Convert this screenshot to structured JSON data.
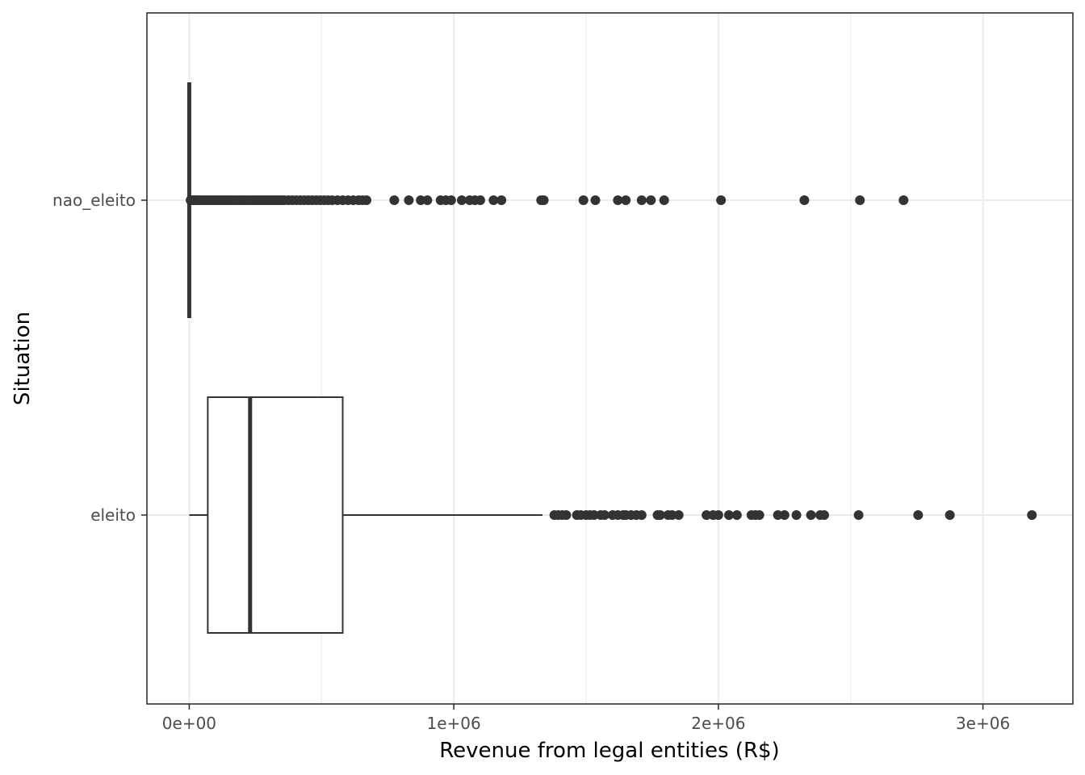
{
  "chart_data": {
    "type": "boxplot",
    "orientation": "horizontal",
    "title": "",
    "xlabel": "Revenue from legal entities (R$)",
    "ylabel": "Situation",
    "xlim": [
      -160000,
      3340000
    ],
    "x_ticks": [
      0,
      1000000,
      2000000,
      3000000
    ],
    "x_tick_labels": [
      "0e+00",
      "1e+06",
      "2e+06",
      "3e+06"
    ],
    "grid": true,
    "categories": [
      "nao_eleito",
      "eleito"
    ],
    "boxes": [
      {
        "category": "nao_eleito",
        "min": 0,
        "q1": 0,
        "median": 0,
        "q3": 0,
        "max": 0,
        "outliers": [
          5000,
          10000,
          15000,
          20000,
          25000,
          30000,
          40000,
          50000,
          60000,
          70000,
          80000,
          90000,
          100000,
          110000,
          120000,
          130000,
          140000,
          150000,
          160000,
          170000,
          180000,
          190000,
          200000,
          210000,
          220000,
          230000,
          240000,
          250000,
          260000,
          270000,
          280000,
          290000,
          300000,
          310000,
          320000,
          330000,
          340000,
          350000,
          360000,
          375000,
          390000,
          405000,
          420000,
          435000,
          450000,
          465000,
          480000,
          495000,
          510000,
          525000,
          540000,
          560000,
          580000,
          600000,
          620000,
          640000,
          655000,
          670000,
          775000,
          830000,
          875000,
          900000,
          950000,
          970000,
          990000,
          1030000,
          1060000,
          1080000,
          1100000,
          1150000,
          1180000,
          1330000,
          1340000,
          1490000,
          1535000,
          1620000,
          1650000,
          1710000,
          1745000,
          1795000,
          2010000,
          2325000,
          2535000,
          2700000
        ]
      },
      {
        "category": "eleito",
        "min": 0,
        "q1": 70000,
        "median": 230000,
        "q3": 580000,
        "max": 1335000,
        "outliers": [
          1380000,
          1395000,
          1410000,
          1425000,
          1465000,
          1480000,
          1500000,
          1515000,
          1530000,
          1555000,
          1570000,
          1600000,
          1620000,
          1640000,
          1650000,
          1670000,
          1690000,
          1710000,
          1770000,
          1780000,
          1810000,
          1825000,
          1850000,
          1955000,
          1980000,
          2000000,
          2040000,
          2070000,
          2125000,
          2140000,
          2155000,
          2225000,
          2250000,
          2295000,
          2350000,
          2385000,
          2400000,
          2530000,
          2755000,
          2875000,
          3185000
        ]
      }
    ]
  }
}
